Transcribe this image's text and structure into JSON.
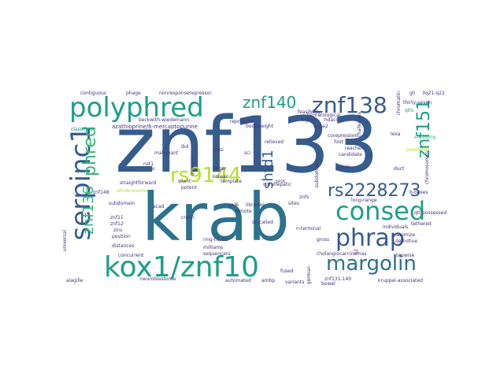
{
  "colors": {
    "c1": "#365c8d",
    "c2": "#2c718e",
    "c3": "#1f9e89",
    "c4": "#35b779",
    "c5": "#6ece58",
    "c6": "#b5de2b",
    "c7": "#fde725",
    "c8": "#46337e",
    "c9": "#440154"
  },
  "words": {
    "znf133": "znf133",
    "krab": "krab",
    "kox1_znf10": "kox1/znf10",
    "consed": "consed",
    "phrap": "phrap",
    "polyphred": "polyphred",
    "serpinc1": "serpinc1",
    "znf138": "znf138",
    "margolin": "margolin",
    "rs9144": "rs9144",
    "rs2228273": "rs2228273",
    "znf151": "znf151",
    "znf140": "znf140",
    "phred": "phred",
    "znf136": "znf136",
    "shfd1": "shfd1",
    "azathioprine": "azathioprine/6-mercaptopurine",
    "beckwith": "beckwith-wiedemann",
    "nonresponse": "nonresponserepressor",
    "phage": "phage",
    "contiguous": "contiguous",
    "classified": "classified",
    "thirty_seven": "thirty-seven",
    "q3q21": "3q21-q22",
    "qtls": "qtls",
    "bodyweight": "bodyweight",
    "anxa2": "anxa2",
    "feasibility": "feasibility",
    "hematological": "hematological",
    "logistic": "logistic",
    "hdacs": "hdacs",
    "relieved": "relieved",
    "lexa": "lexa",
    "corepression": "corepression",
    "foot": "foot",
    "reached": "reached",
    "candidate": "candidate",
    "finger": "finger",
    "korean": "korean",
    "template": "template",
    "silent": "silent",
    "potent": "potent",
    "malignant": "malignant",
    "ibd": "ibd",
    "plasi": "plasi",
    "sci": "sci",
    "nst1": "nst1",
    "clinical": "clinical",
    "straightforward": "straightforward",
    "intrahepatic": "intrahepatic",
    "znfs": "znfs",
    "bile": "bile",
    "lcc": "lcc",
    "duct": "duct",
    "qtl": "qtl",
    "b_boxes": "b-boxes",
    "possessed": "possessed",
    "tethered": "tethered",
    "znf148": "znf148",
    "subdomain": "subdomain",
    "znf11": "znf11",
    "znf12": "znf12",
    "acad": "acad",
    "zinc": "zinc",
    "position": "position",
    "distances": "distances",
    "concurrent": "concurrent",
    "crohn": "crohn",
    "ring_h1": "ring-h1-b2",
    "milliams": "milliams",
    "sequencers": "sequencers",
    "libraries": "libraries",
    "so_called": "so-called",
    "gross": "gross",
    "cholangio": "cholangiocarcinomas",
    "znf131": "znf131-140",
    "kruppel": "kruppel-associated",
    "maximize": "maximize",
    "definitive": "definitive",
    "stepwise": "stepwise",
    "individuals": "individuals",
    "alagille": "alagille",
    "universal": "universal",
    "neuroblastoma": "neuroblastoma",
    "automated": "automated",
    "variants": "variants",
    "bowel": "bowel",
    "fused": "fused",
    "ambp": "ambp",
    "german": "german",
    "remote": "remote",
    "gal6": "gal6",
    "domains": "domains",
    "repression": "repression",
    "chromatin": "chromatin",
    "challenges": "challenges",
    "long_range": "long-range",
    "subdomains": "subdomains",
    "n_terminal": "n-terminal",
    "predicted": "predicted",
    "gli": "gli",
    "whole_exome": "whole-exome",
    "chromosomes": "chromosomes",
    "encoding": "encoding",
    "q2": "q2",
    "proc": "proc",
    "sites": "sites"
  }
}
